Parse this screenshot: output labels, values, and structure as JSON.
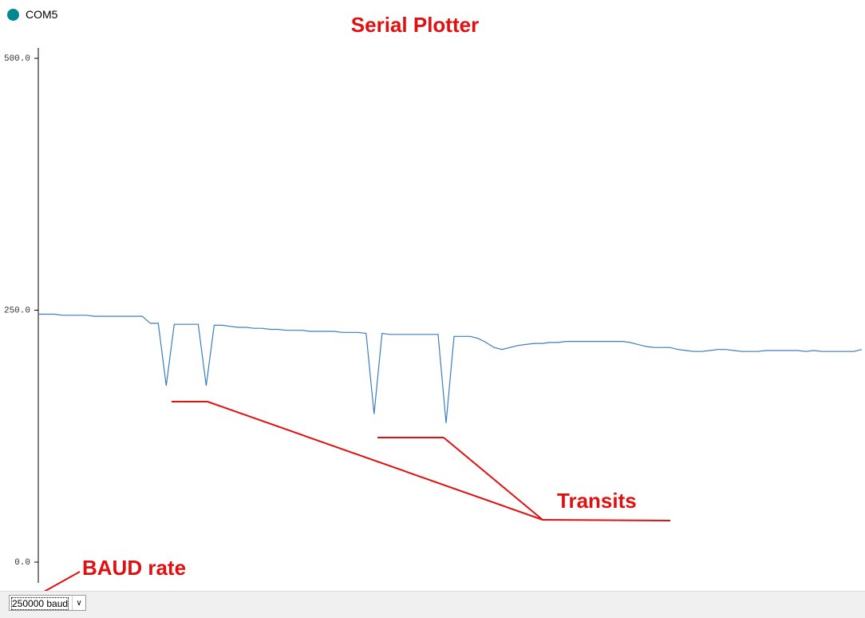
{
  "window": {
    "title": "COM5"
  },
  "baud_rate": "250000 baud",
  "annotations": [
    "Transits",
    "BAUD rate"
  ],
  "chart_data": {
    "type": "line",
    "title": "Serial Plotter",
    "ylim": [
      0,
      500
    ],
    "yticks": [
      {
        "value": 0,
        "label": "0.0"
      },
      {
        "value": 250,
        "label": "250.0"
      },
      {
        "value": 500,
        "label": "500.0"
      }
    ],
    "series": [
      {
        "color": "#3a7ebf",
        "values": [
          246,
          246,
          246,
          245,
          245,
          245,
          245,
          244,
          244,
          244,
          244,
          244,
          244,
          244,
          237,
          237,
          175,
          236,
          236,
          236,
          236,
          175,
          235,
          235,
          234,
          233,
          233,
          232,
          232,
          231,
          231,
          230,
          230,
          230,
          229,
          229,
          229,
          229,
          228,
          228,
          228,
          227,
          147,
          227,
          226,
          226,
          226,
          226,
          226,
          226,
          226,
          138,
          224,
          224,
          224,
          222,
          218,
          213,
          211,
          213,
          215,
          216,
          217,
          217,
          218,
          218,
          219,
          219,
          219,
          219,
          219,
          219,
          219,
          219,
          218,
          216,
          214,
          213,
          213,
          213,
          211,
          210,
          209,
          209,
          210,
          211,
          211,
          210,
          209,
          209,
          209,
          210,
          210,
          210,
          210,
          210,
          209,
          210,
          209,
          209,
          209,
          209,
          209,
          211
        ]
      }
    ]
  }
}
